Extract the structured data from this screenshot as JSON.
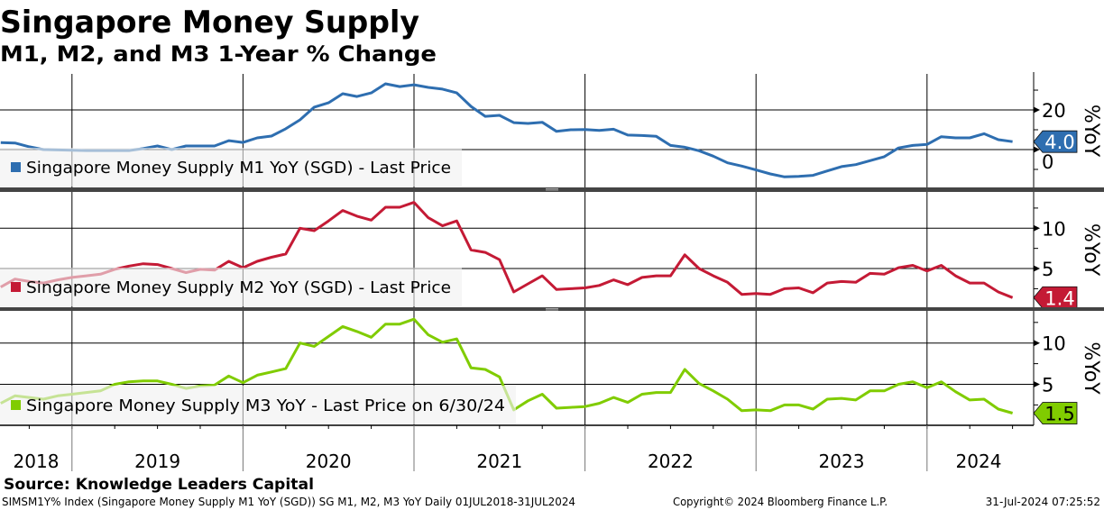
{
  "header": {
    "title": "Singapore Money Supply",
    "subtitle": "M1, M2, and M3 1-Year % Change"
  },
  "chart_data": {
    "type": "line",
    "x_start": "2018-07",
    "frequency": "monthly",
    "x_end": "2024-06",
    "x_tick_labels": [
      "2018",
      "2019",
      "2020",
      "2021",
      "2022",
      "2023",
      "2024"
    ],
    "grid": true,
    "legend_placement": "bottom-left of each panel",
    "panels": [
      {
        "series_name": "Singapore Money Supply M1 YoY (SGD) - Last Price",
        "color": "#2e6eb0",
        "tag_text_color": "#ffffff",
        "ylabel": "%YoY",
        "ylim": [
          -19.1,
          38.2
        ],
        "y_minor_ticks": [
          -10,
          0,
          10,
          20,
          30
        ],
        "y_major_ticks": [
          20,
          0
        ],
        "y_tick_labels": [
          "20",
          "0"
        ],
        "last_value_label": "4.0",
        "values": [
          3.5,
          3.3,
          1.4,
          0,
          -0.2,
          -0.3,
          -0.5,
          -0.5,
          -0.5,
          -0.5,
          0.5,
          1.8,
          0,
          1.8,
          1.8,
          1.8,
          4.5,
          3.6,
          5.9,
          6.8,
          10.5,
          15,
          21.4,
          23.6,
          28.2,
          26.8,
          28.6,
          33.2,
          31.8,
          32.7,
          31.4,
          30.5,
          28.6,
          21.8,
          16.8,
          17.3,
          13.6,
          13.2,
          13.8,
          9.2,
          10,
          10.1,
          9.7,
          10.3,
          7.3,
          7.1,
          6.7,
          2.1,
          1.2,
          -0.6,
          -3.3,
          -6.7,
          -8.3,
          -10.3,
          -12.3,
          -13.8,
          -13.5,
          -13,
          -10.8,
          -8.6,
          -7.6,
          -5.6,
          -3.6,
          0.8,
          2.1,
          2.6,
          6.5,
          5.9,
          5.9,
          8,
          5,
          4.0
        ]
      },
      {
        "series_name": "Singapore Money Supply M2 YoY (SGD) - Last Price",
        "color": "#c41a35",
        "tag_text_color": "#ffffff",
        "ylabel": "%YoY",
        "ylim": [
          0.2,
          14.5
        ],
        "y_minor_ticks": [
          2.5,
          5,
          7.5,
          10,
          12.5
        ],
        "y_major_ticks": [
          10,
          5
        ],
        "y_tick_labels": [
          "10",
          "5"
        ],
        "last_value_label": "1.4",
        "values": [
          2.7,
          3.7,
          3.4,
          3.2,
          3.6,
          3.9,
          4.1,
          4.3,
          4.9,
          5.3,
          5.6,
          5.5,
          5.0,
          4.5,
          4.9,
          4.8,
          5.9,
          5.1,
          5.9,
          6.4,
          6.8,
          10.0,
          9.7,
          10.9,
          12.2,
          11.5,
          11.0,
          12.6,
          12.6,
          13.2,
          11.3,
          10.3,
          10.9,
          7.3,
          7.0,
          6.1,
          2.1,
          3.1,
          4.1,
          2.4,
          2.5,
          2.6,
          2.9,
          3.6,
          3.0,
          3.9,
          4.1,
          4.1,
          6.7,
          5.0,
          4.1,
          3.3,
          1.8,
          1.9,
          1.8,
          2.5,
          2.6,
          2.0,
          3.2,
          3.4,
          3.3,
          4.4,
          4.3,
          5.1,
          5.4,
          4.7,
          5.4,
          4.1,
          3.2,
          3.2,
          2.1,
          1.4
        ]
      },
      {
        "series_name": "Singapore Money Supply M3 YoY - Last Price on 6/30/24",
        "color": "#80cc00",
        "tag_text_color": "#000000",
        "ylabel": "%YoY",
        "ylim": [
          0.03,
          13.9
        ],
        "y_minor_ticks": [
          2.5,
          5,
          7.5,
          10,
          12.5
        ],
        "y_major_ticks": [
          10,
          5
        ],
        "y_tick_labels": [
          "10",
          "5"
        ],
        "last_value_label": "1.5",
        "values": [
          2.7,
          3.6,
          3.4,
          3.2,
          3.6,
          3.8,
          4.0,
          4.2,
          5.0,
          5.3,
          5.4,
          5.4,
          5.0,
          4.5,
          4.8,
          4.9,
          6.0,
          5.2,
          6.1,
          6.5,
          6.9,
          10.0,
          9.6,
          10.8,
          12.0,
          11.4,
          10.7,
          12.3,
          12.3,
          12.9,
          11.0,
          10.1,
          10.5,
          7.0,
          6.8,
          5.9,
          1.9,
          3.0,
          3.8,
          2.1,
          2.2,
          2.3,
          2.7,
          3.4,
          2.8,
          3.8,
          4.0,
          4.0,
          6.8,
          5.1,
          4.2,
          3.2,
          1.8,
          1.9,
          1.8,
          2.5,
          2.5,
          2.0,
          3.2,
          3.3,
          3.1,
          4.2,
          4.2,
          5.0,
          5.3,
          4.6,
          5.3,
          4.1,
          3.1,
          3.2,
          2.0,
          1.5
        ]
      }
    ]
  },
  "footer": {
    "source": "Source: Knowledge Leaders Capital",
    "description": "SIMSM1Y% Index (Singapore Money Supply M1 YoY (SGD)) SG M1, M2, M3 YoY  Daily 01JUL2018-31JUL2024",
    "copyright": "Copyright© 2024 Bloomberg Finance L.P.",
    "timestamp": "31-Jul-2024 07:25:52"
  }
}
